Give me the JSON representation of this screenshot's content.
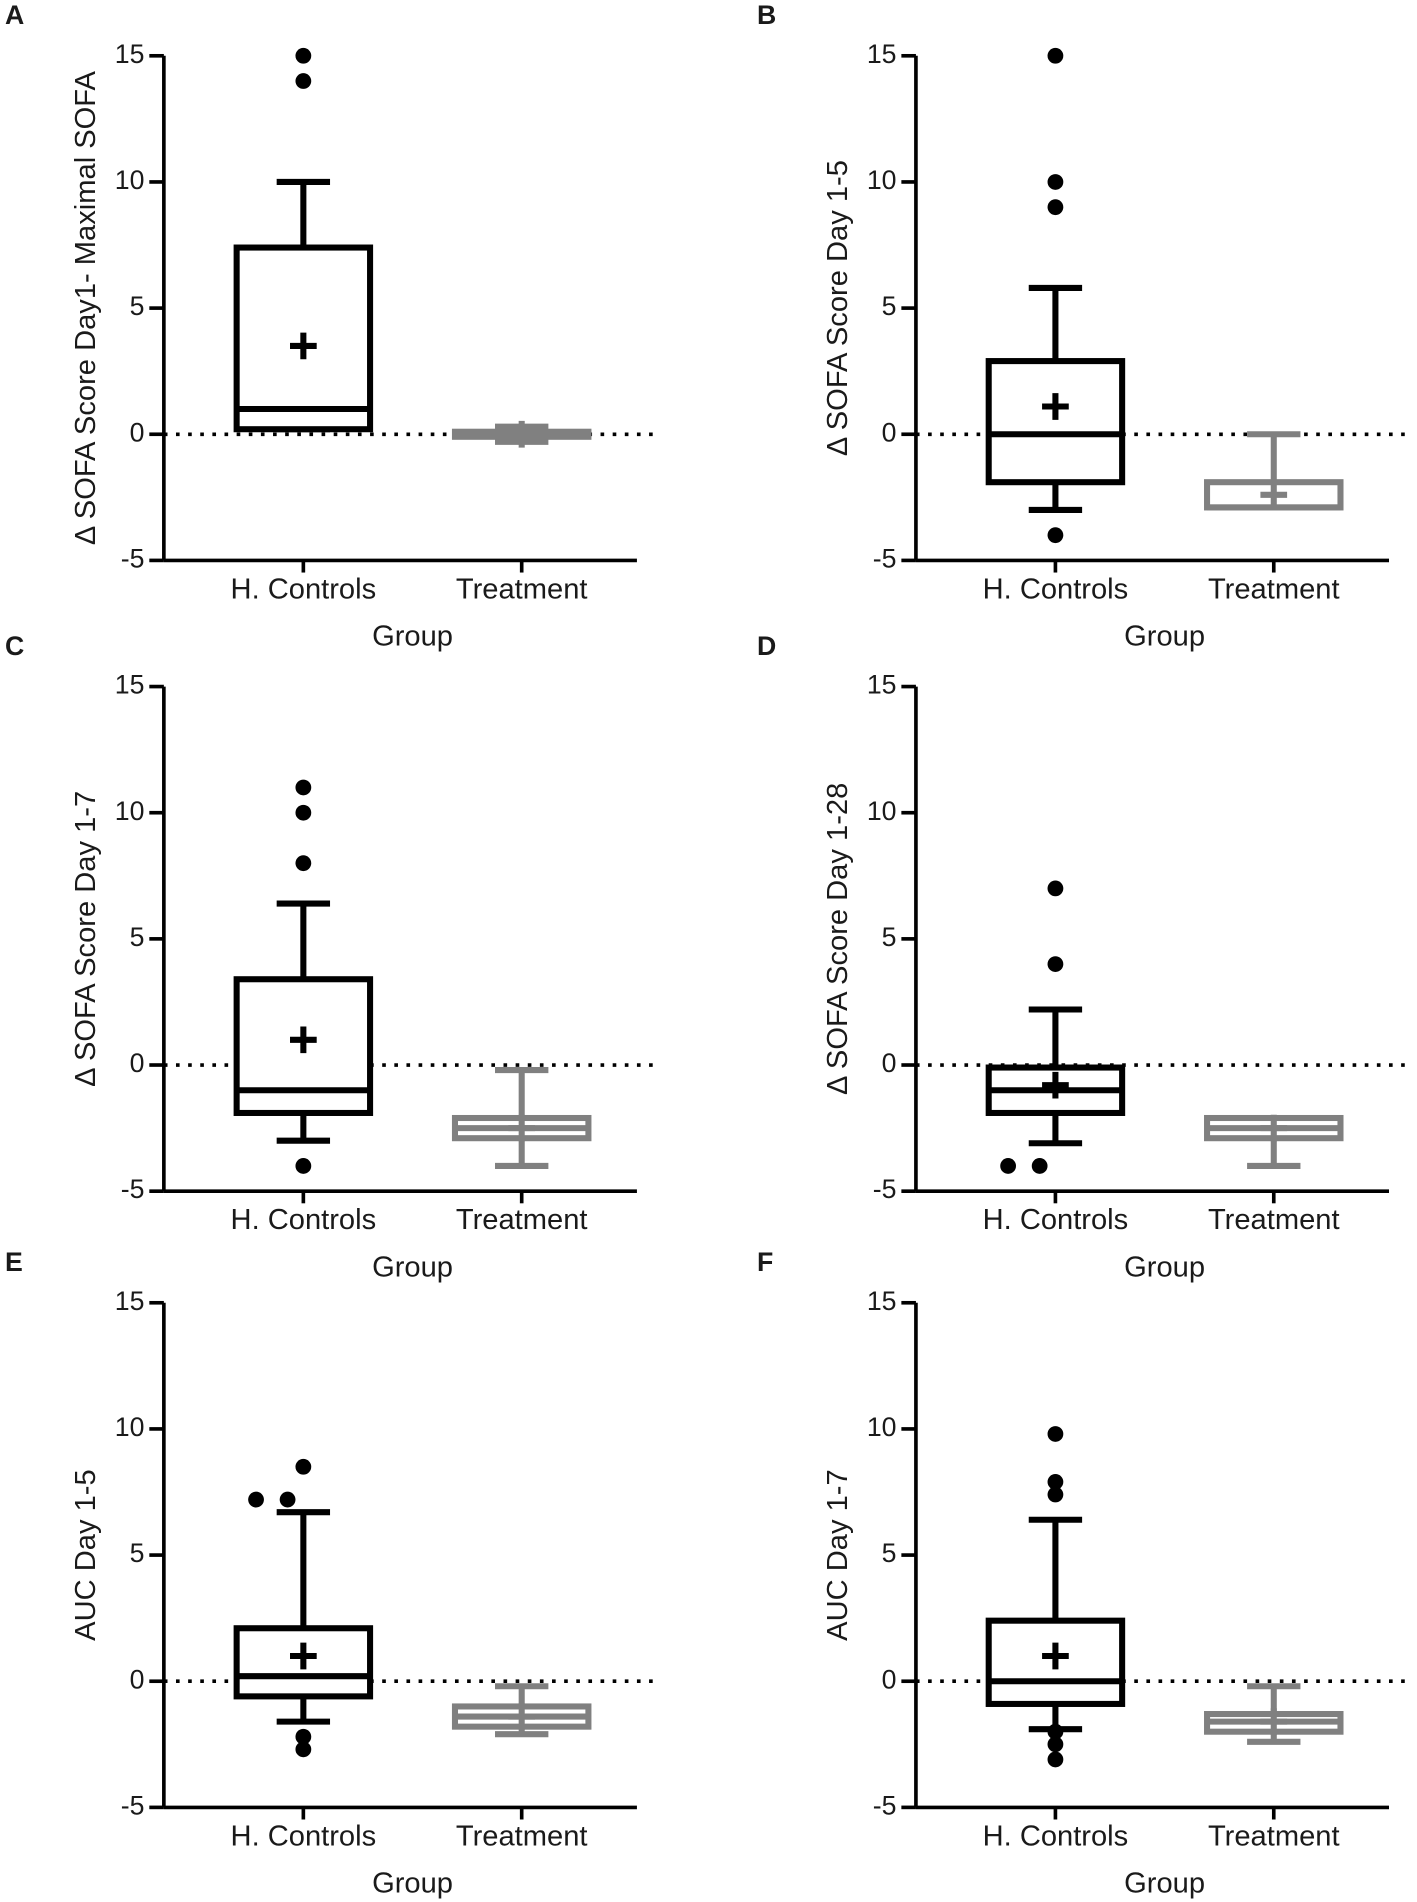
{
  "chart_data": [
    {
      "type": "box",
      "panel": "A",
      "ylabel": "Δ SOFA Score Day1- Maximal SOFA",
      "xlabel": "Group",
      "categories": [
        "H. Controls",
        "Treatment"
      ],
      "colors": [
        "#000000",
        "#808080"
      ],
      "ylim": [
        -5,
        15
      ],
      "yticks": [
        -5,
        0,
        5,
        10,
        15
      ],
      "reference_line": 0,
      "boxes": [
        {
          "whisker_low": 0.2,
          "q1": 0.2,
          "median": 1,
          "q3": 7.4,
          "whisker_high": 10,
          "mean": 3.5,
          "outliers": [
            14,
            15
          ]
        },
        {
          "whisker_low": -0.3,
          "q1": -0.1,
          "median": 0,
          "q3": 0.1,
          "whisker_high": 0.3,
          "mean": 0,
          "outliers": []
        }
      ]
    },
    {
      "type": "box",
      "panel": "B",
      "ylabel": "Δ SOFA Score Day 1-5",
      "xlabel": "Group",
      "categories": [
        "H. Controls",
        "Treatment"
      ],
      "colors": [
        "#000000",
        "#808080"
      ],
      "ylim": [
        -5,
        15
      ],
      "yticks": [
        -5,
        0,
        5,
        10,
        15
      ],
      "reference_line": 0,
      "boxes": [
        {
          "whisker_low": -3,
          "q1": -1.9,
          "median": 0,
          "q3": 2.9,
          "whisker_high": 5.8,
          "mean": 1.1,
          "outliers": [
            15,
            10,
            9,
            -4
          ]
        },
        {
          "whisker_low": -2.9,
          "q1": -2.9,
          "median": -2.9,
          "q3": -1.9,
          "whisker_high": 0,
          "mean": -2.4,
          "outliers": []
        }
      ]
    },
    {
      "type": "box",
      "panel": "C",
      "ylabel": "Δ SOFA Score Day 1-7",
      "xlabel": "Group",
      "categories": [
        "H. Controls",
        "Treatment"
      ],
      "colors": [
        "#000000",
        "#808080"
      ],
      "ylim": [
        -5,
        15
      ],
      "yticks": [
        -5,
        0,
        5,
        10,
        15
      ],
      "reference_line": 0,
      "boxes": [
        {
          "whisker_low": -3,
          "q1": -1.9,
          "median": -1,
          "q3": 3.4,
          "whisker_high": 6.4,
          "mean": 1,
          "outliers": [
            11,
            10,
            8,
            -4
          ]
        },
        {
          "whisker_low": -4,
          "q1": -2.9,
          "median": -2.5,
          "q3": -2.1,
          "whisker_high": -0.2,
          "mean": -2.5,
          "outliers": []
        }
      ]
    },
    {
      "type": "box",
      "panel": "D",
      "ylabel": "Δ SOFA Score Day 1-28",
      "xlabel": "Group",
      "categories": [
        "H. Controls",
        "Treatment"
      ],
      "colors": [
        "#000000",
        "#808080"
      ],
      "ylim": [
        -5,
        15
      ],
      "yticks": [
        -5,
        0,
        5,
        10,
        15
      ],
      "reference_line": 0,
      "boxes": [
        {
          "whisker_low": -3.1,
          "q1": -1.9,
          "median": -1,
          "q3": -0.1,
          "whisker_high": 2.2,
          "mean": -0.8,
          "outliers": [
            7,
            4,
            -4,
            -4
          ]
        },
        {
          "whisker_low": -4,
          "q1": -2.9,
          "median": -2.5,
          "q3": -2.1,
          "whisker_high": -2.1,
          "mean": -2.5,
          "outliers": []
        }
      ]
    },
    {
      "type": "box",
      "panel": "E",
      "ylabel": "AUC Day 1-5",
      "xlabel": "Group",
      "categories": [
        "H. Controls",
        "Treatment"
      ],
      "colors": [
        "#000000",
        "#808080"
      ],
      "ylim": [
        -5,
        15
      ],
      "yticks": [
        -5,
        0,
        5,
        10,
        15
      ],
      "reference_line": 0,
      "boxes": [
        {
          "whisker_low": -1.6,
          "q1": -0.6,
          "median": 0.2,
          "q3": 2.1,
          "whisker_high": 6.7,
          "mean": 1,
          "outliers": [
            8.5,
            7.2,
            7.2,
            -2.2,
            -2.7
          ]
        },
        {
          "whisker_low": -2.1,
          "q1": -1.8,
          "median": -1.4,
          "q3": -1,
          "whisker_high": -0.2,
          "mean": -1.4,
          "outliers": []
        }
      ]
    },
    {
      "type": "box",
      "panel": "F",
      "ylabel": "AUC Day 1-7",
      "xlabel": "Group",
      "categories": [
        "H. Controls",
        "Treatment"
      ],
      "colors": [
        "#000000",
        "#808080"
      ],
      "ylim": [
        -5,
        15
      ],
      "yticks": [
        -5,
        0,
        5,
        10,
        15
      ],
      "reference_line": 0,
      "boxes": [
        {
          "whisker_low": -1.9,
          "q1": -0.9,
          "median": 0,
          "q3": 2.4,
          "whisker_high": 6.4,
          "mean": 1,
          "outliers": [
            9.8,
            7.9,
            7.4,
            -2,
            -2.5,
            -3.1
          ]
        },
        {
          "whisker_low": -2.4,
          "q1": -2,
          "median": -1.6,
          "q3": -1.3,
          "whisker_high": -0.2,
          "mean": -1.6,
          "outliers": []
        }
      ]
    }
  ]
}
